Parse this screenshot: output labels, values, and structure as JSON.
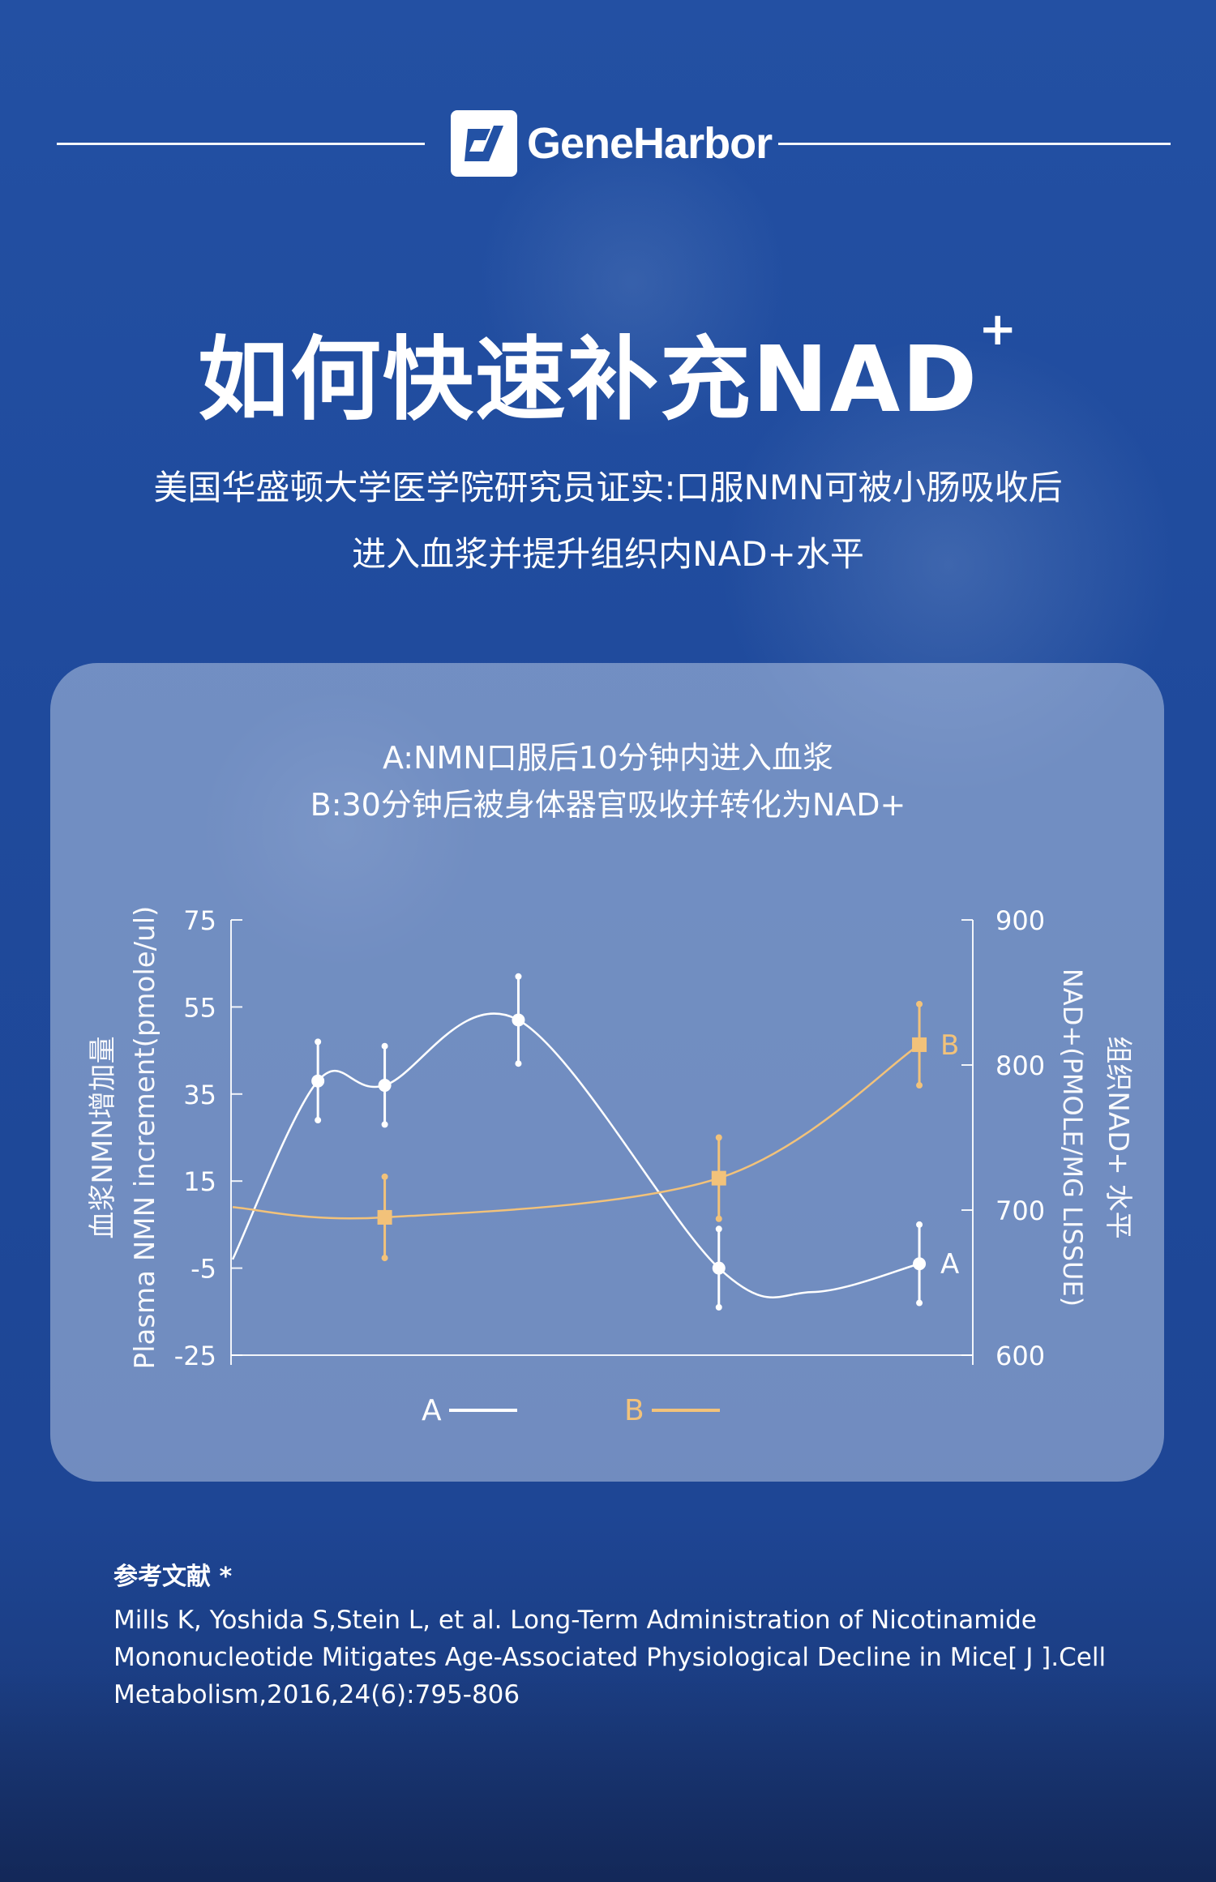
{
  "brand": {
    "name": "GeneHarbor"
  },
  "title": {
    "main": "如何快速补充NAD",
    "sup": "+"
  },
  "subtitle": {
    "line1": "美国华盛顿大学医学院研究员证实:口服NMN可被小肠吸收后",
    "line2": "进入血浆并提升组织内NAD+水平"
  },
  "panel": {
    "note_a": "A:NMN口服后10分钟内进入血浆",
    "note_b": "B:30分钟后被身体器官吸收并转化为NAD+"
  },
  "chart_data": {
    "type": "line",
    "x": [
      1,
      2,
      3,
      4,
      5
    ],
    "left_axis": {
      "label_zh": "血浆NMN增加量",
      "label_en": "Plasma NMN increment(pmole/ul)",
      "ticks": [
        "75",
        "55",
        "35",
        "15",
        "-5",
        "-25"
      ],
      "ylim": [
        -25,
        75
      ]
    },
    "right_axis": {
      "label_zh": "组织NAD+ 水平",
      "label_en": "NAD+(PMOLE/MG LISSUE)",
      "ticks": [
        "900",
        "800",
        "700",
        "600"
      ],
      "ylim": [
        600,
        900
      ]
    },
    "series": [
      {
        "name": "A",
        "axis": "left",
        "color": "#ffffff",
        "points": [
          {
            "x": 1,
            "y": 38,
            "err": 9
          },
          {
            "x": 1.5,
            "y": 37,
            "err": 9
          },
          {
            "x": 2.5,
            "y": 52,
            "err": 10
          },
          {
            "x": 4,
            "y": -5,
            "err": 9
          },
          {
            "x": 5.5,
            "y": -4,
            "err": 9
          }
        ],
        "end_label": "A"
      },
      {
        "name": "B",
        "axis": "right",
        "color": "#f2c27a",
        "points": [
          {
            "x": 1.5,
            "y": 695,
            "err": 28
          },
          {
            "x": 4,
            "y": 722,
            "err": 28
          },
          {
            "x": 5.5,
            "y": 814,
            "err": 28
          }
        ],
        "end_label": "B"
      }
    ],
    "legend": {
      "placement": "bottom-center",
      "items": [
        {
          "label": "A",
          "color": "#ffffff"
        },
        {
          "label": "B",
          "color": "#f2c27a"
        }
      ]
    }
  },
  "references": {
    "heading": "参考文献 *",
    "text": "Mills K, Yoshida S,Stein L, et al. Long-Term Administration of Nicotinamide Mononucleotide Mitigates Age-Associated Physiological Decline in Mice[ J ].Cell Metabolism,2016,24(6):795-806"
  }
}
